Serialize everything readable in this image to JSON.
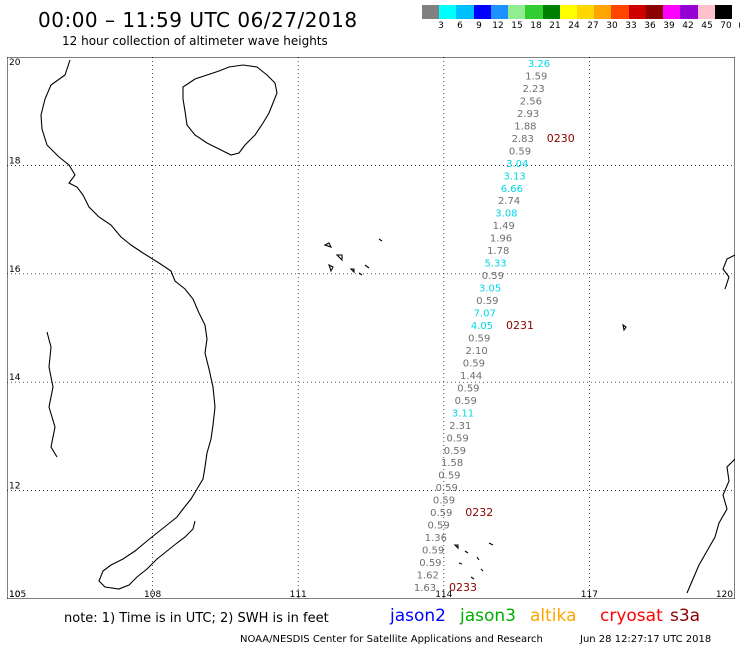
{
  "header": {
    "title": "00:00 – 11:59 UTC 06/27/2018",
    "subtitle": "12 hour collection of altimeter wave heights"
  },
  "color_scale": {
    "colors": [
      "#808080",
      "#00ffff",
      "#00bfff",
      "#0000ff",
      "#1e90ff",
      "#90ee90",
      "#32cd32",
      "#008000",
      "#ffff00",
      "#ffd700",
      "#ffa500",
      "#ff4500",
      "#cd0000",
      "#8b0000",
      "#ff00ff",
      "#9400d3",
      "#ffc0cb",
      "#000000"
    ],
    "labels": [
      "3",
      "6",
      "9",
      "12",
      "15",
      "18",
      "21",
      "24",
      "27",
      "30",
      "33",
      "36",
      "39",
      "42",
      "45",
      "70",
      "(ft)"
    ]
  },
  "map": {
    "lat_labels": [
      "20",
      "18",
      "16",
      "14",
      "12",
      "10"
    ],
    "lon_labels": [
      "105",
      "108",
      "111",
      "114",
      "117",
      "120"
    ],
    "grid": "dotted",
    "track_points": [
      {
        "v": "3.26",
        "c": "cyan"
      },
      {
        "v": "1.59",
        "c": "gray"
      },
      {
        "v": "2.23",
        "c": "gray"
      },
      {
        "v": "2.56",
        "c": "gray"
      },
      {
        "v": "2.93",
        "c": "gray"
      },
      {
        "v": "1.88",
        "c": "gray"
      },
      {
        "v": "2.83",
        "c": "gray"
      },
      {
        "v": "0.59",
        "c": "gray"
      },
      {
        "v": "3.04",
        "c": "cyan"
      },
      {
        "v": "3.13",
        "c": "cyan"
      },
      {
        "v": "6.66",
        "c": "cyan"
      },
      {
        "v": "2.74",
        "c": "gray"
      },
      {
        "v": "3.08",
        "c": "cyan"
      },
      {
        "v": "1.49",
        "c": "gray"
      },
      {
        "v": "1.96",
        "c": "gray"
      },
      {
        "v": "1.78",
        "c": "gray"
      },
      {
        "v": "5.33",
        "c": "cyan"
      },
      {
        "v": "0.59",
        "c": "gray"
      },
      {
        "v": "3.05",
        "c": "cyan"
      },
      {
        "v": "0.59",
        "c": "gray"
      },
      {
        "v": "7.07",
        "c": "cyan"
      },
      {
        "v": "4.05",
        "c": "cyan"
      },
      {
        "v": "0.59",
        "c": "gray"
      },
      {
        "v": "2.10",
        "c": "gray"
      },
      {
        "v": "0.59",
        "c": "gray"
      },
      {
        "v": "1.44",
        "c": "gray"
      },
      {
        "v": "0.59",
        "c": "gray"
      },
      {
        "v": "0.59",
        "c": "gray"
      },
      {
        "v": "3.11",
        "c": "cyan"
      },
      {
        "v": "2.31",
        "c": "gray"
      },
      {
        "v": "0.59",
        "c": "gray"
      },
      {
        "v": "0.59",
        "c": "gray"
      },
      {
        "v": "1.58",
        "c": "gray"
      },
      {
        "v": "0.59",
        "c": "gray"
      },
      {
        "v": "0.59",
        "c": "gray"
      },
      {
        "v": "0.59",
        "c": "gray"
      },
      {
        "v": "0.59",
        "c": "gray"
      },
      {
        "v": "0.59",
        "c": "gray"
      },
      {
        "v": "1.36",
        "c": "gray"
      },
      {
        "v": "0.59",
        "c": "gray"
      },
      {
        "v": "0.59",
        "c": "gray"
      },
      {
        "v": "1.62",
        "c": "gray"
      },
      {
        "v": "1.63",
        "c": "gray"
      }
    ],
    "time_labels": [
      "0230",
      "0231",
      "0232",
      "0233"
    ]
  },
  "footer": {
    "note": "note: 1) Time is in UTC; 2) SWH is in feet",
    "legend": [
      {
        "name": "jason2",
        "color": "#0000ff"
      },
      {
        "name": "jason3",
        "color": "#00b000"
      },
      {
        "name": "altika",
        "color": "#ffa500"
      },
      {
        "name": "cryosat",
        "color": "#ff0000"
      },
      {
        "name": "s3a",
        "color": "#8b0000"
      }
    ],
    "credit": "NOAA/NESDIS Center for Satellite Applications and Research",
    "timestamp": "Jun 28 12:27:17 UTC 2018"
  }
}
